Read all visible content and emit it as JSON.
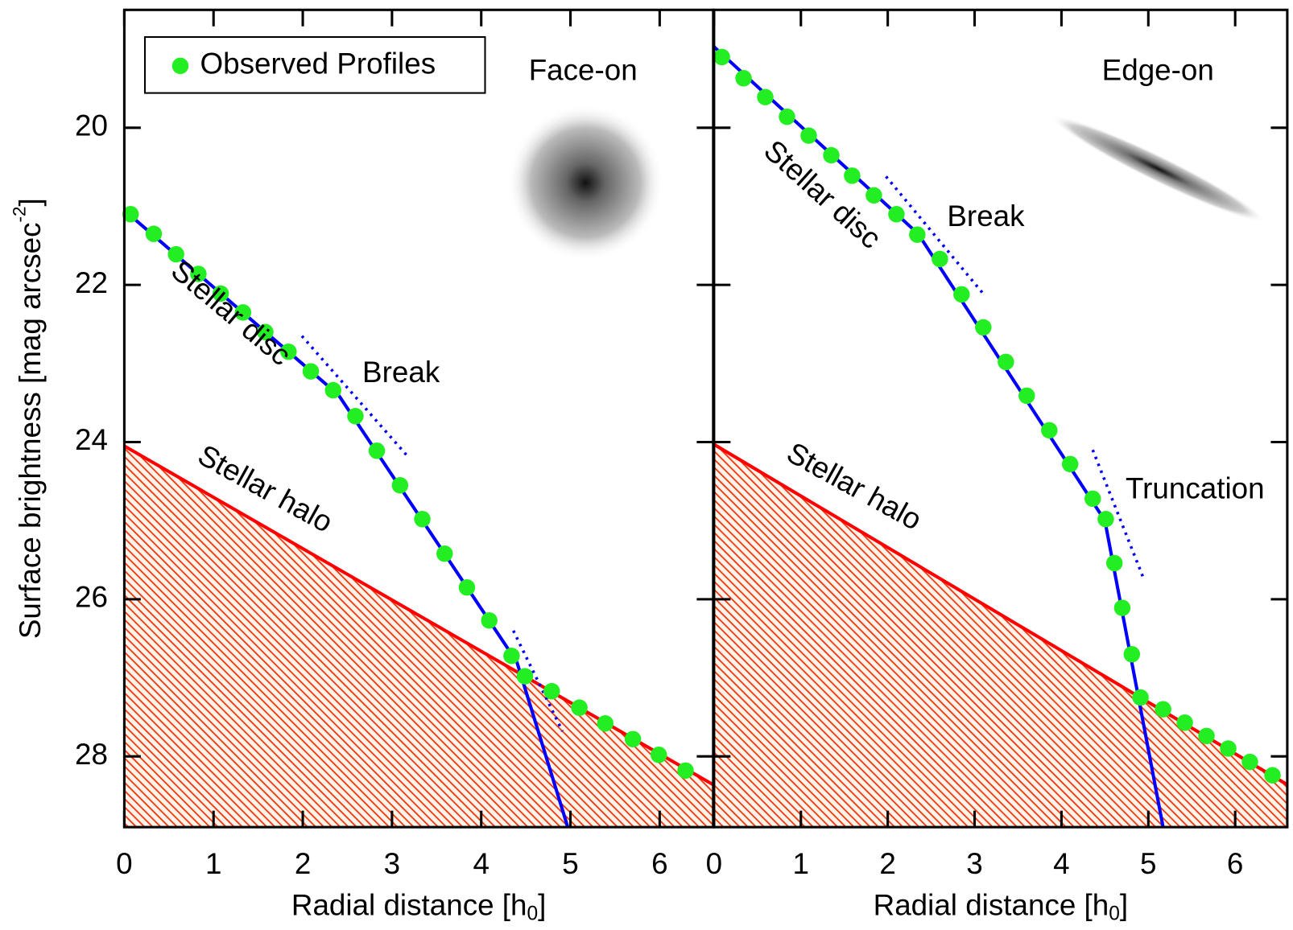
{
  "chart_data": [
    {
      "type": "scatter",
      "xlim": [
        0,
        6.6
      ],
      "ylim": [
        18.5,
        28.9
      ],
      "y_inverted": true,
      "xticks": [
        0,
        1,
        2,
        3,
        4,
        5,
        6
      ],
      "yticks": [
        20,
        22,
        24,
        26,
        28
      ],
      "ytick_labels": true,
      "x_label": {
        "text": "Radial distance [h",
        "sub": "0",
        "end": "]"
      },
      "y_label": {
        "text": "Surface brightness [mag arcsec",
        "sup": "-2",
        "end": "]"
      },
      "legend": "upper left",
      "series": [
        {
          "name": "Observed Profiles",
          "color": "#22ee22",
          "x": [
            0.07,
            0.33,
            0.58,
            0.83,
            1.08,
            1.33,
            1.58,
            1.84,
            2.09,
            2.34,
            2.59,
            2.83,
            3.09,
            3.34,
            3.59,
            3.84,
            4.09,
            4.34,
            4.49,
            4.79,
            5.1,
            5.39,
            5.7,
            5.99,
            6.29
          ],
          "values": [
            21.1,
            21.35,
            21.61,
            21.86,
            22.11,
            22.35,
            22.6,
            22.85,
            23.1,
            23.34,
            23.67,
            24.11,
            24.55,
            24.98,
            25.42,
            25.85,
            26.27,
            26.72,
            26.98,
            27.17,
            27.38,
            27.58,
            27.78,
            27.98,
            28.18
          ]
        }
      ],
      "disc_line": {
        "color": "#0000ff",
        "x": [
          0,
          2.4,
          4.4,
          4.97
        ],
        "values": [
          21.05,
          23.4,
          26.8,
          28.9
        ]
      },
      "halo_line": {
        "color": "#ff0000",
        "x": [
          0,
          6.6
        ],
        "values": [
          24.05,
          28.36
        ]
      },
      "dotted_lines": [
        {
          "color": "#0000ff",
          "x": [
            1.99,
            3.19
          ],
          "values": [
            22.65,
            24.2
          ]
        },
        {
          "color": "#0000ff",
          "x": [
            4.36,
            4.91
          ],
          "values": [
            26.4,
            27.68
          ]
        }
      ],
      "annotations": [
        {
          "text": "Face-on",
          "color": "#000000"
        },
        {
          "text": "Stellar disc",
          "color": "#0000ff"
        },
        {
          "text": "Break",
          "color": "#228b22"
        },
        {
          "text": "Stellar halo",
          "color": "#ff0000"
        }
      ]
    },
    {
      "type": "scatter",
      "xlim": [
        0,
        6.6
      ],
      "ylim": [
        18.5,
        28.9
      ],
      "y_inverted": true,
      "xticks": [
        0,
        1,
        2,
        3,
        4,
        5,
        6
      ],
      "yticks": [
        20,
        22,
        24,
        26,
        28
      ],
      "ytick_labels": false,
      "x_label": {
        "text": "Radial distance [h",
        "sub": "0",
        "end": "]"
      },
      "series": [
        {
          "color": "#22ee22",
          "x": [
            0.09,
            0.34,
            0.59,
            0.84,
            1.09,
            1.35,
            1.59,
            1.84,
            2.1,
            2.34,
            2.6,
            2.85,
            3.1,
            3.36,
            3.6,
            3.86,
            4.1,
            4.36,
            4.51,
            4.61,
            4.7,
            4.81,
            4.91,
            5.17,
            5.42,
            5.67,
            5.92,
            6.17,
            6.43
          ],
          "values": [
            19.1,
            19.37,
            19.61,
            19.86,
            20.1,
            20.35,
            20.61,
            20.86,
            21.1,
            21.36,
            21.67,
            22.12,
            22.54,
            22.98,
            23.41,
            23.85,
            24.28,
            24.72,
            24.98,
            25.54,
            26.11,
            26.7,
            27.25,
            27.4,
            27.57,
            27.74,
            27.9,
            28.07,
            28.24
          ]
        }
      ],
      "disc_line": {
        "color": "#0000ff",
        "x": [
          0,
          2.35,
          4.5,
          5.17
        ],
        "values": [
          18.97,
          21.35,
          25.0,
          28.9
        ]
      },
      "halo_line": {
        "color": "#ff0000",
        "x": [
          0,
          6.6
        ],
        "values": [
          24.03,
          28.36
        ]
      },
      "dotted_lines": [
        {
          "color": "#0000ff",
          "x": [
            1.98,
            3.12
          ],
          "values": [
            20.62,
            22.14
          ]
        },
        {
          "color": "#0000ff",
          "x": [
            4.36,
            4.94
          ],
          "values": [
            24.1,
            25.72
          ]
        }
      ],
      "annotations": [
        {
          "text": "Edge-on",
          "color": "#000000"
        },
        {
          "text": "Stellar disc",
          "color": "#0000ff"
        },
        {
          "text": "Break",
          "color": "#228b22"
        },
        {
          "text": "Truncation",
          "color": "#228b22"
        },
        {
          "text": "Stellar halo",
          "color": "#ff0000"
        }
      ]
    }
  ]
}
